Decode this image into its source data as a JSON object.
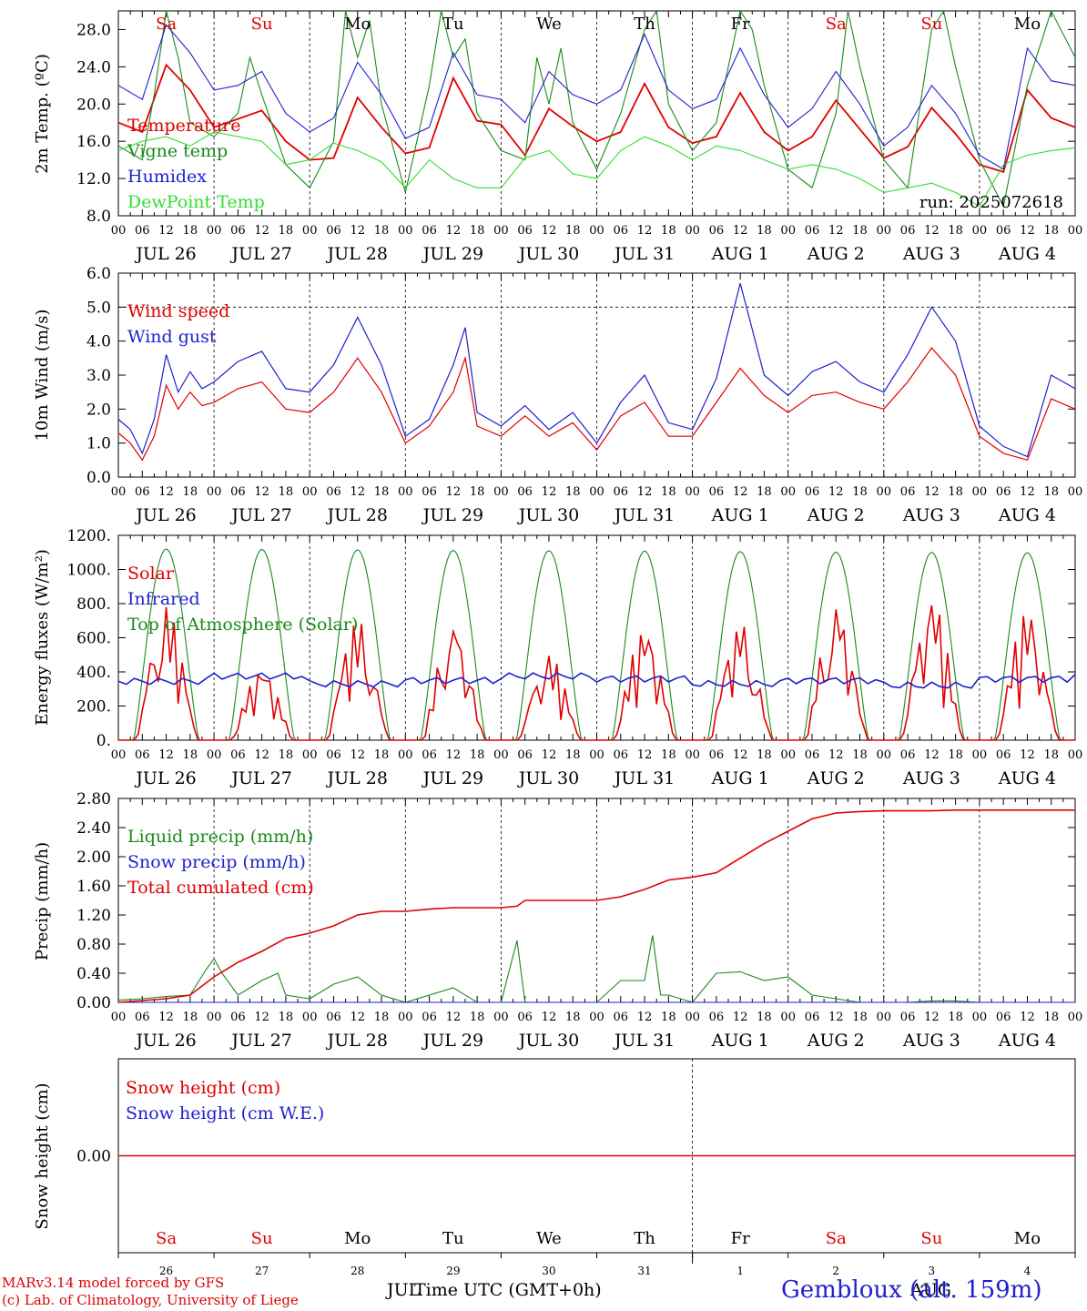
{
  "run_label": "run: 2025072618",
  "hour_ticks": [
    "00",
    "06",
    "12",
    "18"
  ],
  "date_labels": [
    "JUL 26",
    "JUL 27",
    "JUL 28",
    "JUL 29",
    "JUL 30",
    "JUL 31",
    "AUG  1",
    "AUG  2",
    "AUG  3",
    "AUG  4"
  ],
  "day_names": [
    "Sa",
    "Su",
    "Mo",
    "Tu",
    "We",
    "Th",
    "Fr",
    "Sa",
    "Su",
    "Mo"
  ],
  "day_numbers": [
    "26",
    "27",
    "28",
    "29",
    "30",
    "31",
    "1",
    "2",
    "3",
    "4"
  ],
  "month_jul": "JUL",
  "month_aug": "AUG",
  "time_axis_label": "Time UTC (GMT+0h)",
  "footer": {
    "model_line": "MARv3.14 model forced by GFS",
    "copyright_line": "(c) Lab. of Climatology, University of Liege",
    "station": "Gembloux (alt. 159m)"
  },
  "colors": {
    "red": "#e00000",
    "green": "#1a8a1a",
    "blue": "#1f1fd0",
    "lightgreen": "#33dd33",
    "weekend": "#e00000",
    "weekday": "#000000"
  },
  "chart_data": [
    {
      "type": "line",
      "ylabel": "2m Temp. (ºC)",
      "ylim": [
        8,
        30
      ],
      "y_ticks": [
        "8.0",
        "12.0",
        "16.0",
        "20.0",
        "24.0",
        "28.0"
      ],
      "legend_placement": "top-left",
      "series": [
        {
          "name": "Temperature",
          "color": "red",
          "hours": [
            0,
            6,
            12,
            18,
            24,
            30,
            36,
            42,
            48,
            54,
            60,
            66,
            72,
            78,
            84,
            90,
            96,
            102,
            108,
            114,
            120,
            126,
            132,
            138,
            144,
            150,
            156,
            162,
            168,
            174,
            180,
            186,
            192,
            198,
            204,
            210,
            216,
            222,
            228,
            234,
            240
          ],
          "values": [
            18.0,
            17.0,
            24.2,
            21.5,
            17.5,
            18.4,
            19.3,
            16.0,
            14.0,
            14.2,
            20.7,
            17.5,
            14.7,
            15.3,
            22.8,
            18.2,
            17.8,
            14.5,
            19.5,
            17.6,
            16.0,
            17.0,
            22.2,
            17.5,
            15.8,
            16.5,
            21.2,
            17.0,
            15.0,
            16.5,
            20.4,
            17.3,
            14.2,
            15.4,
            19.6,
            16.8,
            13.5,
            12.7,
            21.5,
            18.5,
            17.5
          ]
        },
        {
          "name": "Vigne temp",
          "color": "green",
          "hours": [
            0,
            6,
            9,
            12,
            15,
            18,
            24,
            30,
            33,
            36,
            42,
            48,
            54,
            57,
            60,
            63,
            66,
            72,
            78,
            81,
            84,
            87,
            90,
            96,
            102,
            105,
            108,
            111,
            114,
            120,
            126,
            132,
            135,
            138,
            144,
            150,
            156,
            159,
            162,
            168,
            174,
            180,
            183,
            186,
            192,
            198,
            204,
            207,
            210,
            216,
            222,
            228,
            234,
            240
          ],
          "values": [
            15.5,
            14.0,
            21.0,
            30.5,
            25.0,
            18.0,
            16.5,
            19.0,
            25.0,
            21.0,
            13.5,
            11.0,
            16.0,
            30.0,
            25.0,
            29.0,
            20.0,
            10.5,
            22.0,
            30.0,
            25.0,
            27.0,
            19.0,
            15.0,
            14.0,
            25.0,
            20.0,
            26.0,
            18.0,
            13.0,
            19.0,
            28.0,
            30.0,
            20.0,
            15.0,
            18.0,
            30.0,
            28.0,
            22.0,
            13.0,
            11.0,
            19.0,
            31.0,
            24.0,
            14.0,
            11.0,
            28.0,
            30.0,
            24.0,
            14.0,
            9.0,
            22.0,
            30.0,
            25.0
          ]
        },
        {
          "name": "Humidex",
          "color": "blue",
          "hours": [
            0,
            6,
            12,
            18,
            24,
            30,
            36,
            42,
            48,
            54,
            60,
            66,
            72,
            78,
            84,
            90,
            96,
            102,
            108,
            114,
            120,
            126,
            132,
            138,
            144,
            150,
            156,
            162,
            168,
            174,
            180,
            186,
            192,
            198,
            204,
            210,
            216,
            222,
            228,
            234,
            240
          ],
          "values": [
            22.0,
            20.5,
            28.5,
            25.5,
            21.5,
            22.0,
            23.5,
            19.0,
            17.0,
            18.5,
            24.5,
            21.0,
            16.3,
            17.5,
            25.5,
            21.0,
            20.5,
            18.0,
            23.5,
            21.0,
            20.0,
            21.5,
            27.5,
            21.5,
            19.5,
            20.5,
            26.0,
            21.0,
            17.5,
            19.5,
            23.5,
            20.0,
            15.5,
            17.5,
            22.0,
            19.0,
            14.5,
            13.0,
            26.0,
            22.5,
            22.0
          ]
        },
        {
          "name": "DewPoint Temp",
          "color": "lightgreen",
          "hours": [
            0,
            6,
            12,
            18,
            24,
            30,
            36,
            42,
            48,
            54,
            60,
            66,
            72,
            78,
            84,
            90,
            96,
            102,
            108,
            114,
            120,
            126,
            132,
            138,
            144,
            150,
            156,
            162,
            168,
            174,
            180,
            186,
            192,
            198,
            204,
            210,
            216,
            222,
            228,
            234,
            240
          ],
          "values": [
            15.0,
            16.0,
            16.5,
            15.5,
            17.0,
            16.5,
            16.0,
            13.5,
            14.0,
            15.8,
            15.0,
            13.8,
            11.0,
            14.0,
            12.0,
            11.0,
            11.0,
            14.2,
            15.0,
            12.5,
            12.0,
            15.0,
            16.5,
            15.5,
            14.0,
            15.5,
            15.0,
            14.0,
            13.0,
            13.5,
            13.0,
            12.0,
            10.5,
            11.0,
            11.5,
            10.5,
            9.0,
            13.5,
            14.5,
            15.0,
            15.3
          ]
        }
      ]
    },
    {
      "type": "line",
      "ylabel": "10m Wind (m/s)",
      "ylim": [
        0,
        6
      ],
      "y_ticks": [
        "0.0",
        "1.0",
        "2.0",
        "3.0",
        "4.0",
        "5.0",
        "6.0"
      ],
      "legend_placement": "top-left",
      "series": [
        {
          "name": "Wind speed",
          "color": "red",
          "hours": [
            0,
            3,
            6,
            9,
            12,
            15,
            18,
            21,
            24,
            30,
            36,
            42,
            48,
            54,
            60,
            66,
            72,
            78,
            84,
            87,
            90,
            96,
            102,
            108,
            114,
            120,
            126,
            132,
            138,
            144,
            150,
            156,
            162,
            168,
            174,
            180,
            186,
            192,
            198,
            204,
            210,
            216,
            222,
            228,
            234,
            240
          ],
          "values": [
            1.3,
            1.0,
            0.5,
            1.2,
            2.7,
            2.0,
            2.5,
            2.1,
            2.2,
            2.6,
            2.8,
            2.0,
            1.9,
            2.5,
            3.5,
            2.5,
            1.0,
            1.5,
            2.5,
            3.5,
            1.5,
            1.2,
            1.8,
            1.2,
            1.6,
            0.8,
            1.8,
            2.2,
            1.2,
            1.2,
            2.2,
            3.2,
            2.4,
            1.9,
            2.4,
            2.5,
            2.2,
            2.0,
            2.8,
            3.8,
            3.0,
            1.2,
            0.7,
            0.5,
            2.3,
            2.0
          ]
        },
        {
          "name": "Wind gust",
          "color": "blue",
          "hours": [
            0,
            3,
            6,
            9,
            12,
            15,
            18,
            21,
            24,
            30,
            36,
            42,
            48,
            54,
            60,
            66,
            72,
            78,
            84,
            87,
            90,
            96,
            102,
            108,
            114,
            120,
            126,
            132,
            138,
            144,
            150,
            156,
            162,
            168,
            174,
            180,
            186,
            192,
            198,
            204,
            210,
            216,
            222,
            228,
            234,
            240
          ],
          "values": [
            1.7,
            1.4,
            0.7,
            1.7,
            3.6,
            2.5,
            3.1,
            2.6,
            2.8,
            3.4,
            3.7,
            2.6,
            2.5,
            3.3,
            4.7,
            3.3,
            1.2,
            1.7,
            3.3,
            4.4,
            1.9,
            1.5,
            2.1,
            1.4,
            1.9,
            1.0,
            2.2,
            3.0,
            1.6,
            1.4,
            2.9,
            5.7,
            3.0,
            2.4,
            3.1,
            3.4,
            2.8,
            2.5,
            3.6,
            5.0,
            4.0,
            1.5,
            0.9,
            0.6,
            3.0,
            2.6
          ]
        }
      ]
    },
    {
      "type": "line",
      "ylabel": "Energy fluxes (W/m²)",
      "ylim": [
        0,
        1200
      ],
      "y_ticks": [
        "0.",
        "200.",
        "400.",
        "600.",
        "800.",
        "1000.",
        "1200."
      ],
      "legend_placement": "top-left",
      "series": [
        {
          "name": "Solar",
          "color": "red",
          "days_peak": [
            780,
            420,
            700,
            690,
            500,
            650,
            690,
            790,
            830,
            750
          ]
        },
        {
          "name": "Infrared",
          "color": "blue",
          "days_level": [
            345,
            375,
            330,
            350,
            375,
            360,
            330,
            350,
            320,
            360
          ]
        },
        {
          "name": "Top of Atmosphere (Solar)",
          "color": "green",
          "days_peak": [
            1120,
            1118,
            1115,
            1112,
            1110,
            1108,
            1105,
            1102,
            1100,
            1098
          ]
        }
      ]
    },
    {
      "type": "line",
      "ylabel": "Precip (mm/h)",
      "ylim": [
        0,
        2.8
      ],
      "y_ticks": [
        "0.00",
        "0.40",
        "0.80",
        "1.20",
        "1.60",
        "2.00",
        "2.40",
        "2.80"
      ],
      "legend_placement": "top-left",
      "series": [
        {
          "name": "Liquid precip (mm/h)",
          "color": "green",
          "hours": [
            0,
            6,
            12,
            18,
            22,
            24,
            26,
            30,
            36,
            40,
            42,
            48,
            54,
            60,
            66,
            72,
            84,
            90,
            96,
            100,
            102,
            104,
            108,
            120,
            126,
            132,
            134,
            136,
            138,
            144,
            150,
            156,
            162,
            168,
            174,
            180,
            186,
            192,
            198,
            204,
            210,
            216,
            222,
            228,
            234,
            240
          ],
          "values": [
            0.03,
            0.05,
            0.08,
            0.1,
            0.45,
            0.6,
            0.4,
            0.1,
            0.3,
            0.4,
            0.1,
            0.05,
            0.25,
            0.35,
            0.1,
            0.0,
            0.2,
            0.0,
            0.0,
            0.85,
            0.0,
            0.0,
            0.0,
            0.0,
            0.3,
            0.3,
            0.92,
            0.1,
            0.1,
            0.0,
            0.4,
            0.42,
            0.3,
            0.35,
            0.1,
            0.05,
            0.0,
            0.0,
            0.0,
            0.02,
            0.02,
            0.0,
            0.0,
            0.0,
            0.0,
            0.0
          ]
        },
        {
          "name": "Snow precip (mm/h)",
          "color": "blue",
          "hours": [
            0,
            240
          ],
          "values": [
            0,
            0
          ]
        },
        {
          "name": "Total cumulated (cm)",
          "color": "red",
          "hours": [
            0,
            12,
            18,
            24,
            30,
            36,
            42,
            48,
            54,
            60,
            66,
            72,
            78,
            84,
            90,
            96,
            100,
            102,
            108,
            120,
            126,
            132,
            138,
            144,
            150,
            156,
            162,
            168,
            174,
            180,
            186,
            192,
            198,
            204,
            210,
            216,
            222,
            228,
            234,
            240
          ],
          "values": [
            0.0,
            0.05,
            0.1,
            0.35,
            0.55,
            0.7,
            0.88,
            0.95,
            1.05,
            1.2,
            1.25,
            1.25,
            1.28,
            1.3,
            1.3,
            1.3,
            1.32,
            1.4,
            1.4,
            1.4,
            1.45,
            1.55,
            1.68,
            1.72,
            1.78,
            1.98,
            2.18,
            2.35,
            2.52,
            2.6,
            2.62,
            2.63,
            2.63,
            2.63,
            2.64,
            2.64,
            2.64,
            2.64,
            2.64,
            2.64
          ]
        }
      ]
    },
    {
      "type": "line",
      "ylabel": "Snow height (cm)",
      "y_ticks": [
        "0.00"
      ],
      "legend_placement": "top-left",
      "series": [
        {
          "name": "Snow height (cm)",
          "color": "red",
          "hours": [
            0,
            240
          ],
          "values": [
            0,
            0
          ]
        },
        {
          "name": "Snow height (cm W.E.)",
          "color": "blue",
          "hours": [
            0,
            240
          ],
          "values": [
            0,
            0
          ]
        }
      ]
    }
  ]
}
